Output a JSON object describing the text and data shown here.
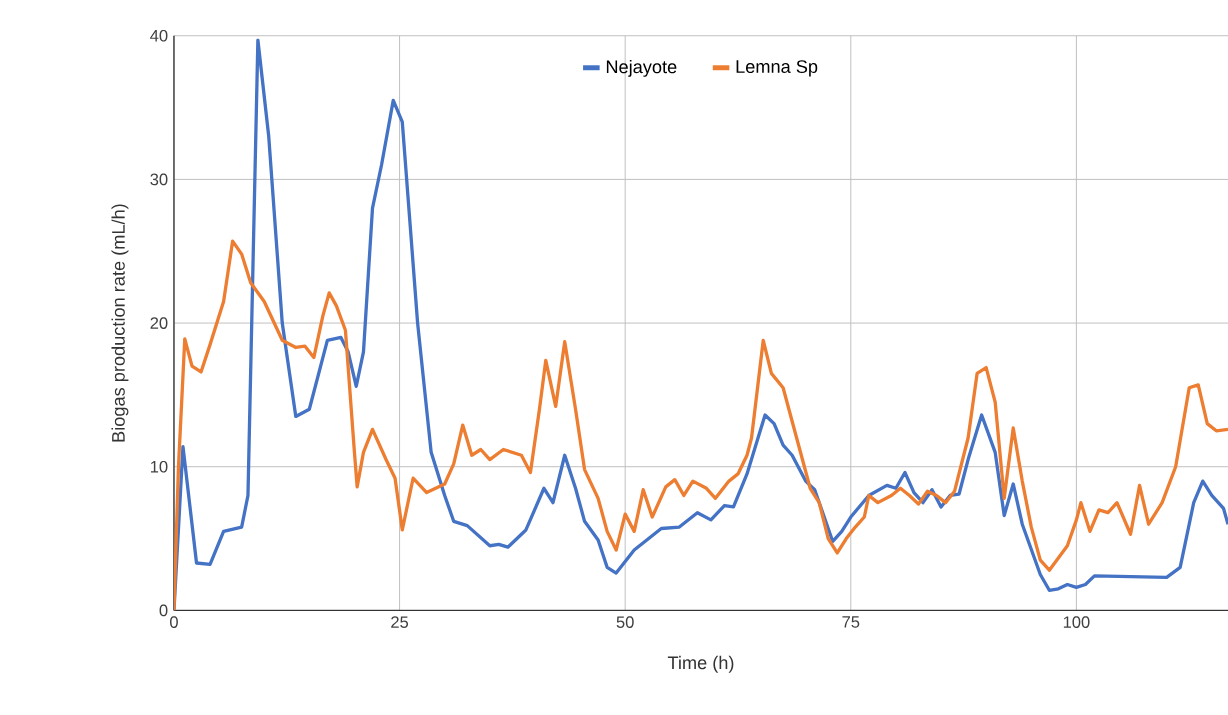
{
  "chart_data": {
    "type": "line",
    "xlabel": "Time (h)",
    "ylabel": "Biogas production rate (mL/h)",
    "xlim": [
      0,
      116.8
    ],
    "ylim": [
      0,
      40
    ],
    "xticks": [
      0,
      25,
      50,
      75,
      100
    ],
    "yticks": [
      0,
      10,
      20,
      30,
      40
    ],
    "grid": true,
    "legend": "top",
    "series": [
      {
        "name": "Nejayote",
        "color": "#4472c4",
        "x": [
          0,
          1,
          2.5,
          4,
          5.5,
          7.5,
          8.2,
          9.3,
          10.5,
          12,
          13.5,
          15,
          17,
          18.5,
          19.3,
          20.2,
          21,
          22,
          23,
          24.3,
          25.3,
          27,
          28.5,
          30,
          31,
          32.5,
          35,
          36,
          37,
          39,
          41,
          42,
          43.3,
          44.5,
          45.5,
          47,
          48,
          49,
          51,
          54,
          56,
          58,
          59.5,
          61,
          62,
          63.5,
          65.5,
          66.5,
          67.5,
          68.5,
          70,
          71,
          73,
          74,
          75,
          77,
          79,
          80,
          81,
          82,
          83,
          84,
          85,
          86,
          87,
          88,
          89.5,
          91,
          92,
          93,
          94,
          96,
          97,
          98,
          99,
          100,
          101,
          102,
          110,
          111.5,
          113,
          114,
          115,
          116.3,
          116.8
        ],
        "values": [
          0,
          11.4,
          3.3,
          3.2,
          5.5,
          5.8,
          8,
          39.7,
          33,
          20,
          13.5,
          14,
          18.8,
          19,
          18,
          15.6,
          18,
          28,
          31,
          35.5,
          34,
          20,
          11,
          8,
          6.2,
          5.9,
          4.5,
          4.6,
          4.4,
          5.6,
          8.5,
          7.5,
          10.8,
          8.5,
          6.2,
          4.9,
          3,
          2.6,
          4.2,
          5.7,
          5.8,
          6.8,
          6.3,
          7.3,
          7.2,
          9.5,
          13.6,
          13,
          11.5,
          10.8,
          9,
          8.4,
          4.8,
          5.5,
          6.5,
          8,
          8.7,
          8.5,
          9.6,
          8.2,
          7.5,
          8.4,
          7.2,
          8,
          8.1,
          10.5,
          13.6,
          11,
          6.6,
          8.8,
          6,
          2.5,
          1.4,
          1.5,
          1.8,
          1.6,
          1.8,
          2.4,
          2.3,
          3,
          7.5,
          9,
          8,
          7.1,
          6
        ]
      },
      {
        "name": "Lemna Sp",
        "color": "#ed7d31",
        "x": [
          0,
          0.5,
          1.2,
          2,
          3,
          4,
          5,
          5.5,
          6.5,
          7.5,
          8.5,
          10,
          12,
          13.5,
          14.5,
          15.5,
          16.5,
          17.2,
          18,
          19,
          20,
          20.3,
          21,
          22,
          23.5,
          24.5,
          25.3,
          26.5,
          28,
          30,
          31,
          32,
          33,
          34,
          35,
          36.5,
          38.5,
          39.5,
          40.5,
          41.2,
          42.3,
          43.3,
          44.5,
          45.5,
          47,
          48,
          49,
          50,
          51,
          52,
          53,
          54.5,
          55.5,
          56.5,
          57.5,
          59,
          60,
          61.5,
          62.5,
          63.5,
          64,
          65.3,
          66.2,
          67.5,
          69,
          70.5,
          71.5,
          72.5,
          73.5,
          74.5,
          75.5,
          76.5,
          77,
          78,
          79.5,
          80.5,
          81.5,
          82.5,
          83.5,
          84.5,
          85.5,
          86.5,
          88,
          89,
          90,
          91,
          92,
          93,
          94,
          95,
          96,
          97,
          99,
          100,
          100.5,
          101.5,
          102.5,
          103.5,
          104.5,
          106,
          107,
          108,
          109.5,
          111,
          112.5,
          113.5,
          114.5,
          115.5,
          116.8
        ],
        "values": [
          0,
          10,
          18.9,
          17,
          16.6,
          18.5,
          20.5,
          21.5,
          25.7,
          24.8,
          22.8,
          21.5,
          18.8,
          18.3,
          18.4,
          17.6,
          20.5,
          22.1,
          21.2,
          19.5,
          11,
          8.6,
          11,
          12.6,
          10.5,
          9.2,
          5.6,
          9.2,
          8.2,
          8.8,
          10.2,
          12.9,
          10.8,
          11.2,
          10.5,
          11.2,
          10.8,
          9.6,
          14,
          17.4,
          14.2,
          18.7,
          14,
          9.8,
          7.8,
          5.5,
          4.2,
          6.7,
          5.5,
          8.4,
          6.5,
          8.6,
          9.1,
          8,
          9,
          8.5,
          7.8,
          9,
          9.5,
          10.8,
          12,
          18.8,
          16.5,
          15.5,
          12,
          8.5,
          7.5,
          5,
          4,
          5,
          5.8,
          6.5,
          8,
          7.5,
          8,
          8.5,
          8,
          7.4,
          8.3,
          8,
          7.5,
          8.3,
          12,
          16.5,
          16.9,
          14.5,
          7.8,
          12.7,
          9,
          5.8,
          3.5,
          2.8,
          4.5,
          6.3,
          7.5,
          5.5,
          7,
          6.8,
          7.5,
          5.3,
          8.7,
          6,
          7.5,
          10,
          15.5,
          15.7,
          13,
          12.5,
          12.6
        ]
      }
    ]
  }
}
